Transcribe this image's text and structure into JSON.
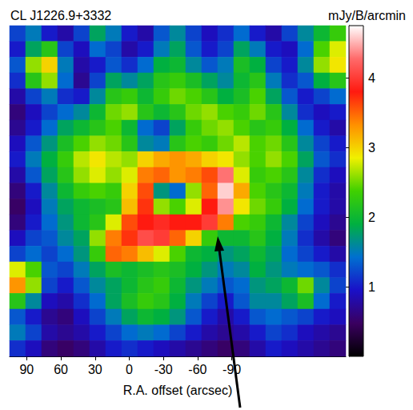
{
  "chart_data": {
    "type": "heatmap",
    "title": "CL J1226.9+3332",
    "x_label": "R.A. offset (arcsec)",
    "xlim": [
      105,
      -190
    ],
    "xticks": [
      90,
      60,
      30,
      0,
      -30,
      -60,
      -90
    ],
    "tick_labels": "x",
    "colorbar": {
      "label": "mJy/B/arcmin",
      "range": [
        0,
        4.75
      ],
      "ticks": [
        1,
        2,
        3,
        4
      ]
    },
    "cells": [
      [
        1.2,
        1.5,
        1.0,
        0.8,
        1.2,
        1.8,
        1.5,
        1.0,
        0.8,
        1.3,
        1.6,
        1.2,
        0.9,
        1.1,
        1.4,
        1.0,
        0.8,
        1.2,
        1.6,
        2.0,
        2.3
      ],
      [
        1.0,
        1.8,
        2.2,
        1.2,
        0.9,
        1.4,
        1.2,
        0.8,
        1.0,
        1.5,
        1.8,
        1.3,
        1.0,
        1.2,
        1.8,
        1.5,
        1.0,
        0.9,
        1.4,
        2.4,
        2.8
      ],
      [
        1.3,
        2.6,
        3.0,
        1.5,
        0.8,
        1.0,
        1.3,
        1.1,
        1.4,
        1.9,
        2.0,
        1.6,
        1.3,
        1.5,
        2.1,
        1.9,
        1.2,
        1.0,
        1.6,
        2.6,
        2.9
      ],
      [
        1.1,
        2.2,
        2.6,
        1.4,
        0.7,
        1.2,
        1.8,
        1.6,
        1.8,
        2.2,
        2.3,
        2.1,
        1.8,
        1.6,
        2.0,
        2.2,
        1.5,
        1.1,
        1.3,
        1.9,
        2.2
      ],
      [
        0.8,
        1.2,
        1.5,
        1.1,
        1.0,
        1.6,
        2.2,
        2.3,
        2.0,
        2.3,
        2.5,
        2.4,
        2.2,
        1.9,
        2.1,
        2.4,
        1.8,
        1.3,
        1.0,
        1.2,
        1.4
      ],
      [
        0.6,
        0.9,
        1.2,
        1.4,
        1.6,
        2.0,
        2.5,
        2.6,
        2.2,
        2.0,
        2.2,
        2.5,
        2.6,
        2.4,
        2.3,
        2.5,
        2.2,
        1.6,
        1.1,
        0.9,
        1.0
      ],
      [
        0.7,
        1.0,
        1.4,
        1.8,
        2.0,
        2.2,
        2.4,
        2.0,
        1.4,
        1.2,
        1.8,
        2.3,
        2.5,
        2.6,
        2.4,
        2.2,
        2.3,
        1.9,
        1.4,
        1.0,
        0.8
      ],
      [
        0.9,
        1.3,
        1.7,
        2.1,
        2.4,
        2.6,
        2.5,
        2.2,
        1.6,
        1.5,
        2.2,
        2.4,
        2.3,
        2.5,
        2.7,
        2.4,
        2.5,
        2.2,
        1.6,
        1.2,
        1.0
      ],
      [
        1.0,
        1.5,
        1.9,
        2.3,
        2.7,
        2.9,
        2.7,
        2.6,
        3.0,
        3.2,
        3.3,
        3.2,
        3.0,
        2.9,
        2.6,
        2.4,
        2.6,
        2.4,
        1.8,
        1.3,
        1.1
      ],
      [
        0.8,
        1.3,
        1.8,
        2.2,
        2.6,
        2.8,
        2.6,
        2.8,
        3.4,
        3.5,
        3.3,
        3.4,
        3.6,
        4.3,
        2.8,
        2.3,
        2.4,
        2.2,
        1.6,
        1.1,
        0.9
      ],
      [
        0.6,
        1.0,
        1.6,
        2.0,
        2.3,
        2.4,
        2.3,
        3.0,
        3.6,
        1.7,
        1.4,
        2.6,
        3.5,
        4.6,
        3.2,
        2.4,
        2.2,
        2.0,
        1.5,
        1.0,
        0.8
      ],
      [
        0.5,
        0.9,
        1.5,
        1.8,
        2.0,
        2.1,
        2.2,
        3.1,
        3.7,
        2.6,
        2.4,
        2.8,
        3.8,
        4.4,
        2.9,
        2.5,
        2.3,
        1.9,
        1.4,
        1.0,
        0.8
      ],
      [
        0.6,
        1.0,
        1.4,
        1.7,
        2.0,
        2.2,
        2.8,
        3.6,
        3.8,
        3.9,
        3.8,
        3.8,
        4.0,
        3.4,
        2.4,
        2.3,
        2.0,
        1.6,
        1.2,
        0.9,
        0.7
      ],
      [
        0.9,
        1.2,
        1.3,
        1.6,
        1.8,
        2.6,
        3.4,
        3.7,
        4.1,
        4.0,
        3.5,
        3.0,
        2.3,
        2.0,
        2.0,
        2.2,
        1.9,
        1.5,
        1.1,
        0.8,
        0.6
      ],
      [
        1.2,
        1.4,
        1.2,
        1.4,
        1.7,
        2.3,
        3.5,
        3.4,
        3.1,
        2.8,
        2.4,
        2.0,
        1.9,
        1.7,
        1.8,
        2.0,
        1.8,
        1.4,
        1.2,
        1.0,
        0.8
      ],
      [
        2.8,
        2.4,
        1.3,
        1.2,
        1.5,
        1.8,
        2.1,
        2.0,
        2.1,
        2.2,
        2.1,
        1.9,
        1.7,
        1.5,
        1.6,
        1.9,
        1.7,
        1.5,
        1.4,
        1.3,
        1.1
      ],
      [
        3.3,
        2.6,
        1.2,
        1.0,
        1.3,
        1.6,
        1.8,
        2.0,
        2.2,
        2.3,
        2.0,
        1.7,
        1.5,
        1.3,
        1.4,
        1.7,
        1.8,
        2.0,
        2.5,
        1.6,
        1.2
      ],
      [
        2.2,
        1.6,
        0.9,
        0.8,
        1.1,
        1.4,
        1.8,
        2.1,
        2.3,
        2.2,
        1.9,
        1.5,
        1.2,
        1.0,
        1.3,
        1.6,
        1.6,
        1.8,
        2.1,
        1.4,
        1.0
      ],
      [
        1.3,
        1.0,
        0.7,
        0.6,
        0.9,
        1.2,
        1.5,
        1.8,
        2.0,
        1.9,
        1.7,
        1.3,
        1.0,
        0.8,
        1.0,
        1.3,
        1.4,
        1.3,
        1.2,
        1.0,
        0.9
      ],
      [
        1.5,
        1.2,
        0.8,
        0.7,
        0.8,
        1.0,
        1.2,
        1.4,
        1.5,
        1.4,
        1.2,
        1.0,
        0.8,
        0.7,
        0.8,
        1.0,
        1.2,
        1.1,
        0.9,
        0.8,
        0.7
      ],
      [
        1.1,
        0.9,
        0.6,
        0.5,
        0.6,
        0.8,
        1.0,
        1.1,
        1.0,
        0.9,
        0.8,
        0.7,
        0.6,
        0.5,
        0.6,
        0.8,
        1.0,
        0.9,
        0.8,
        0.7,
        0.6
      ]
    ]
  }
}
